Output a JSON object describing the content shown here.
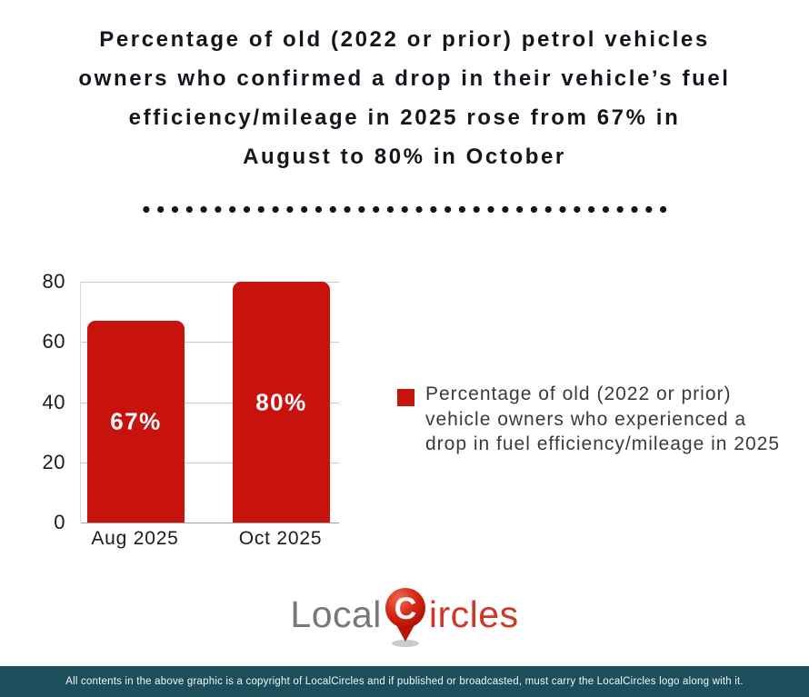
{
  "title": {
    "lines": [
      "Percentage of old (2022 or prior) petrol vehicles",
      "owners who confirmed a drop in their vehicle’s fuel",
      "efficiency/mileage in 2025 rose from 67% in",
      "August to 80% in October"
    ]
  },
  "chart_data": {
    "type": "bar",
    "categories": [
      "Aug 2025",
      "Oct 2025"
    ],
    "values": [
      67,
      80
    ],
    "value_labels": [
      "67%",
      "80%"
    ],
    "y_ticks": [
      0,
      20,
      40,
      60,
      80
    ],
    "ylim": [
      0,
      80
    ],
    "grid": true,
    "bar_color": "#c8120d",
    "value_label_color": "#ffffff",
    "legend": {
      "position": "right",
      "swatch_color": "#c8120d",
      "label": "Percentage of old (2022 or prior) vehicle owners who experienced a drop in fuel efficiency/mileage in 2025"
    },
    "title": "",
    "xlabel": "",
    "ylabel": ""
  },
  "logo": {
    "prefix": "Local",
    "pin_letter": "C",
    "suffix": "ircles",
    "prefix_color": "#787879",
    "suffix_color": "#ce3826",
    "pin_color": "#c51708"
  },
  "footer": {
    "text": "All contents in the above graphic is a copyright of LocalCircles and if published or broadcasted, must carry the LocalCircles logo along with it.",
    "background_color": "#1d4e5c"
  },
  "colors": {
    "accent_red": "#c8120d",
    "title_text": "#15151d",
    "gridline": "#c9c9c9"
  }
}
